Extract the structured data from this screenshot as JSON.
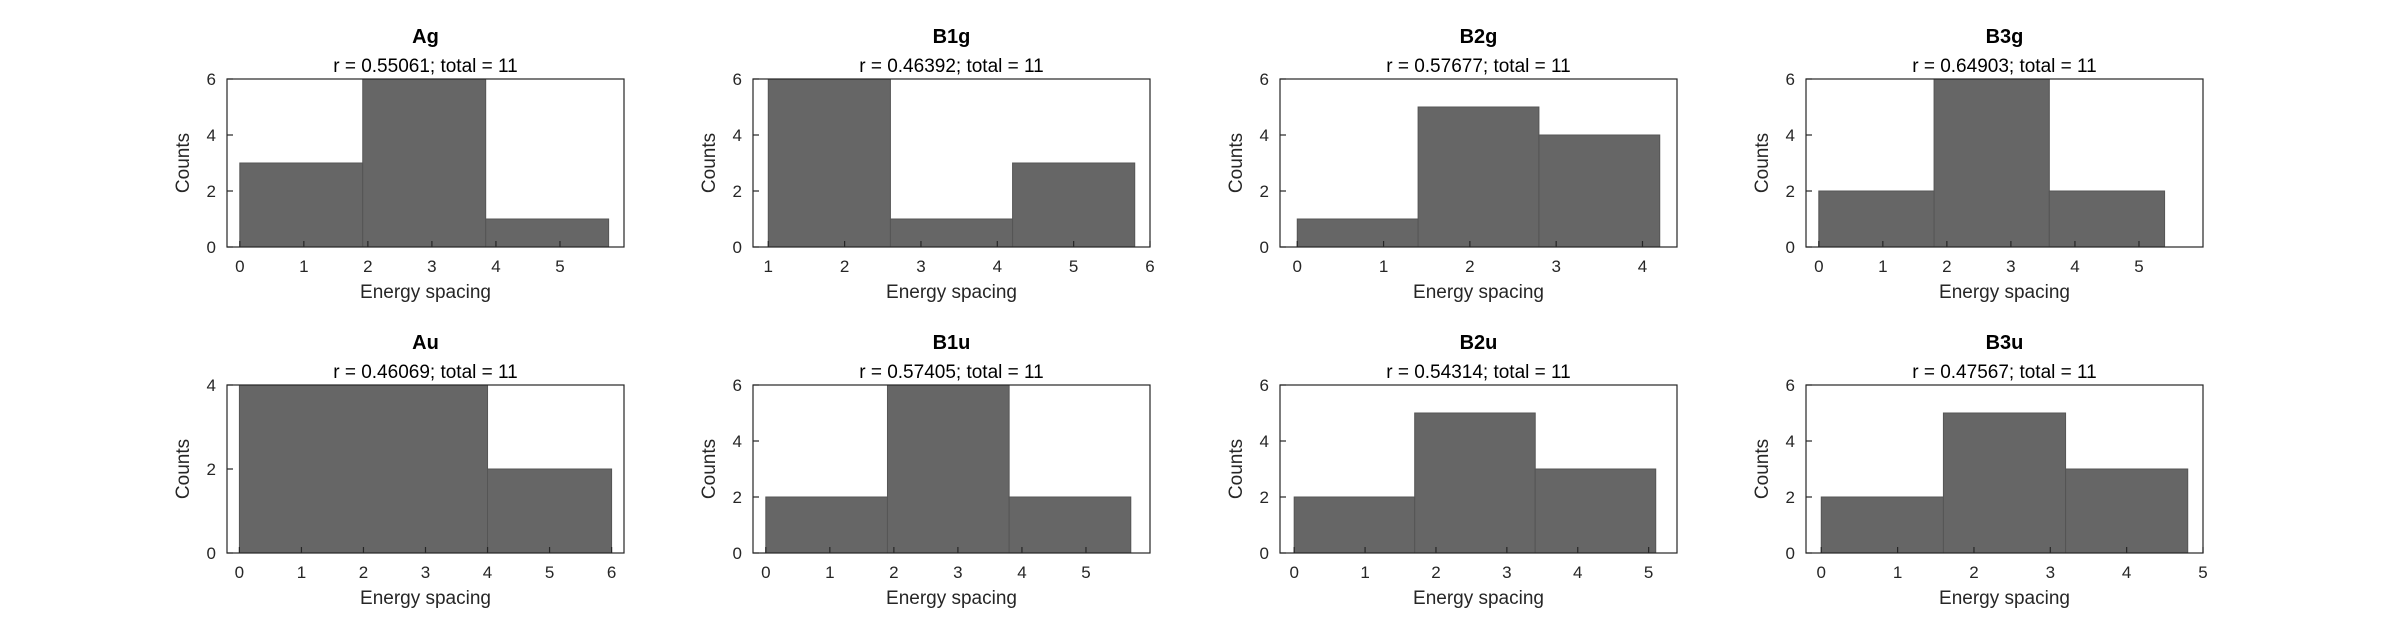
{
  "chart_data": [
    {
      "type": "bar",
      "title": "Ag",
      "subtitle": "r = 0.55061; total = 11",
      "xlabel": "Energy spacing",
      "ylabel": "Counts",
      "bins": [
        {
          "from": 0.0,
          "to": 1.92,
          "count": 3
        },
        {
          "from": 1.92,
          "to": 3.84,
          "count": 6
        },
        {
          "from": 3.84,
          "to": 5.76,
          "count": 1
        }
      ],
      "xlim": [
        -0.2,
        6.0
      ],
      "ylim": [
        0,
        6
      ],
      "xticks": [
        0,
        1,
        2,
        3,
        4,
        5
      ],
      "yticks": [
        0,
        2,
        4,
        6
      ]
    },
    {
      "type": "bar",
      "title": "B1g",
      "subtitle": "r = 0.46392; total = 11",
      "xlabel": "Energy spacing",
      "ylabel": "Counts",
      "bins": [
        {
          "from": 1.0,
          "to": 2.6,
          "count": 6
        },
        {
          "from": 2.6,
          "to": 4.2,
          "count": 1
        },
        {
          "from": 4.2,
          "to": 5.8,
          "count": 3
        }
      ],
      "xlim": [
        0.8,
        6.0
      ],
      "ylim": [
        0,
        6
      ],
      "xticks": [
        1,
        2,
        3,
        4,
        5,
        6
      ],
      "yticks": [
        0,
        2,
        4,
        6
      ]
    },
    {
      "type": "bar",
      "title": "B2g",
      "subtitle": "r = 0.57677; total = 11",
      "xlabel": "Energy spacing",
      "ylabel": "Counts",
      "bins": [
        {
          "from": 0.0,
          "to": 1.4,
          "count": 1
        },
        {
          "from": 1.4,
          "to": 2.8,
          "count": 5
        },
        {
          "from": 2.8,
          "to": 4.2,
          "count": 4
        }
      ],
      "xlim": [
        -0.2,
        4.4
      ],
      "ylim": [
        0,
        6
      ],
      "xticks": [
        0,
        1,
        2,
        3,
        4
      ],
      "yticks": [
        0,
        2,
        4,
        6
      ]
    },
    {
      "type": "bar",
      "title": "B3g",
      "subtitle": "r = 0.64903; total = 11",
      "xlabel": "Energy spacing",
      "ylabel": "Counts",
      "bins": [
        {
          "from": 0.0,
          "to": 1.8,
          "count": 2
        },
        {
          "from": 1.8,
          "to": 3.6,
          "count": 6
        },
        {
          "from": 3.6,
          "to": 5.4,
          "count": 2
        }
      ],
      "xlim": [
        -0.2,
        6.0
      ],
      "ylim": [
        0,
        6
      ],
      "xticks": [
        0,
        1,
        2,
        3,
        4,
        5
      ],
      "yticks": [
        0,
        2,
        4,
        6
      ]
    },
    {
      "type": "bar",
      "title": "Au",
      "subtitle": "r = 0.46069; total = 11",
      "xlabel": "Energy spacing",
      "ylabel": "Counts",
      "bins": [
        {
          "from": 0.0,
          "to": 4.0,
          "count": 4
        },
        {
          "from": 4.0,
          "to": 6.0,
          "count": 2
        }
      ],
      "xlim": [
        -0.2,
        6.2
      ],
      "ylim": [
        0,
        4
      ],
      "xticks": [
        0,
        1,
        2,
        3,
        4,
        5,
        6
      ],
      "yticks": [
        0,
        2,
        4
      ]
    },
    {
      "type": "bar",
      "title": "B1u",
      "subtitle": "r = 0.57405; total = 11",
      "xlabel": "Energy spacing",
      "ylabel": "Counts",
      "bins": [
        {
          "from": 0.0,
          "to": 1.9,
          "count": 2
        },
        {
          "from": 1.9,
          "to": 3.8,
          "count": 6
        },
        {
          "from": 3.8,
          "to": 5.7,
          "count": 2
        }
      ],
      "xlim": [
        -0.2,
        6.0
      ],
      "ylim": [
        0,
        6
      ],
      "xticks": [
        0,
        1,
        2,
        3,
        4,
        5
      ],
      "yticks": [
        0,
        2,
        4,
        6
      ]
    },
    {
      "type": "bar",
      "title": "B2u",
      "subtitle": "r = 0.54314; total = 11",
      "xlabel": "Energy spacing",
      "ylabel": "Counts",
      "bins": [
        {
          "from": 0.0,
          "to": 1.7,
          "count": 2
        },
        {
          "from": 1.7,
          "to": 3.4,
          "count": 5
        },
        {
          "from": 3.4,
          "to": 5.1,
          "count": 3
        }
      ],
      "xlim": [
        -0.2,
        5.4
      ],
      "ylim": [
        0,
        6
      ],
      "xticks": [
        0,
        1,
        2,
        3,
        4,
        5
      ],
      "yticks": [
        0,
        2,
        4,
        6
      ]
    },
    {
      "type": "bar",
      "title": "B3u",
      "subtitle": "r = 0.47567; total = 11",
      "xlabel": "Energy spacing",
      "ylabel": "Counts",
      "bins": [
        {
          "from": 0.0,
          "to": 1.6,
          "count": 2
        },
        {
          "from": 1.6,
          "to": 3.2,
          "count": 5
        },
        {
          "from": 3.2,
          "to": 4.8,
          "count": 3
        }
      ],
      "xlim": [
        -0.2,
        5.0
      ],
      "ylim": [
        0,
        6
      ],
      "xticks": [
        0,
        1,
        2,
        3,
        4,
        5
      ],
      "yticks": [
        0,
        2,
        4,
        6
      ]
    }
  ],
  "colors": {
    "bar_fill": "#666666",
    "axes": "#262626",
    "background": "#ffffff"
  }
}
